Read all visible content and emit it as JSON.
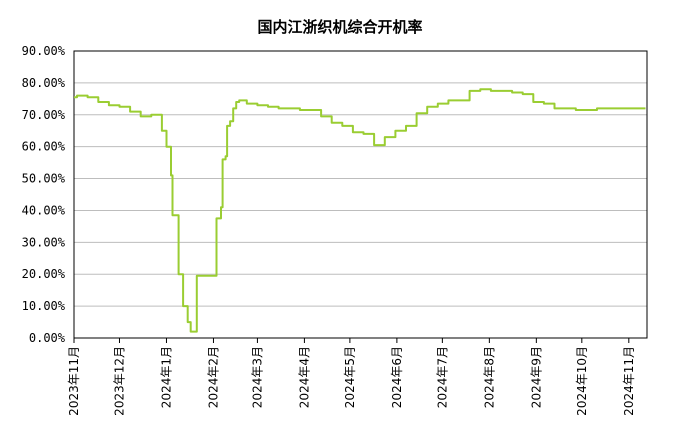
{
  "chart_data": {
    "type": "line",
    "title": "国内江浙织机综合开机率",
    "xlabel": "",
    "ylabel": "",
    "ylim": [
      0,
      90
    ],
    "y_ticks": [
      0,
      10,
      20,
      30,
      40,
      50,
      60,
      70,
      80,
      90
    ],
    "y_tick_labels": [
      "0.00%",
      "10.00%",
      "20.00%",
      "30.00%",
      "40.00%",
      "50.00%",
      "60.00%",
      "70.00%",
      "80.00%",
      "90.00%"
    ],
    "x_range": [
      "2023-11-01",
      "2024-11-13"
    ],
    "x_ticks": [
      "2023-11-01",
      "2023-12-01",
      "2024-01-01",
      "2024-02-01",
      "2024-03-01",
      "2024-04-01",
      "2024-05-01",
      "2024-06-01",
      "2024-07-01",
      "2024-08-01",
      "2024-09-01",
      "2024-10-01",
      "2024-11-01"
    ],
    "x_tick_labels": [
      "2023年11月",
      "2023年12月",
      "2024年1月",
      "2024年2月",
      "2024年3月",
      "2024年4月",
      "2024年5月",
      "2024年6月",
      "2024年7月",
      "2024年8月",
      "2024年9月",
      "2024年10月",
      "2024年11月"
    ],
    "grid": true,
    "legend": "none",
    "series": [
      {
        "color": "#9acd32",
        "step": true,
        "x": [
          "2023-11-01",
          "2023-11-03",
          "2023-11-10",
          "2023-11-17",
          "2023-11-24",
          "2023-12-01",
          "2023-12-08",
          "2023-12-15",
          "2023-12-22",
          "2023-12-29",
          "2024-01-01",
          "2024-01-04",
          "2024-01-05",
          "2024-01-09",
          "2024-01-12",
          "2024-01-15",
          "2024-01-17",
          "2024-01-19",
          "2024-01-21",
          "2024-02-03",
          "2024-02-06",
          "2024-02-07",
          "2024-02-09",
          "2024-02-10",
          "2024-02-12",
          "2024-02-14",
          "2024-02-16",
          "2024-02-18",
          "2024-02-23",
          "2024-03-01",
          "2024-03-08",
          "2024-03-15",
          "2024-03-22",
          "2024-03-29",
          "2024-04-05",
          "2024-04-12",
          "2024-04-19",
          "2024-04-26",
          "2024-05-03",
          "2024-05-10",
          "2024-05-17",
          "2024-05-24",
          "2024-05-31",
          "2024-06-07",
          "2024-06-14",
          "2024-06-21",
          "2024-06-28",
          "2024-07-05",
          "2024-07-12",
          "2024-07-19",
          "2024-07-26",
          "2024-08-02",
          "2024-08-09",
          "2024-08-16",
          "2024-08-23",
          "2024-08-30",
          "2024-09-06",
          "2024-09-13",
          "2024-09-20",
          "2024-09-27",
          "2024-10-04",
          "2024-10-11",
          "2024-10-18",
          "2024-10-25",
          "2024-11-01",
          "2024-11-08",
          "2024-11-12"
        ],
        "values": [
          75.5,
          76.0,
          75.5,
          74.0,
          73.0,
          72.5,
          71.0,
          69.5,
          70.0,
          65.0,
          60.0,
          51.0,
          38.5,
          20.0,
          10.0,
          5.0,
          2.0,
          2.0,
          19.5,
          37.5,
          41.0,
          56.0,
          57.0,
          66.5,
          68.0,
          72.0,
          74.0,
          74.5,
          73.5,
          73.0,
          72.5,
          72.0,
          72.0,
          71.5,
          71.5,
          69.5,
          67.5,
          66.5,
          64.5,
          64.0,
          60.5,
          63.0,
          65.0,
          66.5,
          70.5,
          72.5,
          73.5,
          74.5,
          74.5,
          77.5,
          78.0,
          77.5,
          77.5,
          77.0,
          76.5,
          74.0,
          73.5,
          72.0,
          72.0,
          71.5,
          71.5,
          72.0,
          72.0,
          72.0,
          72.0,
          72.0,
          72.0
        ]
      }
    ]
  }
}
